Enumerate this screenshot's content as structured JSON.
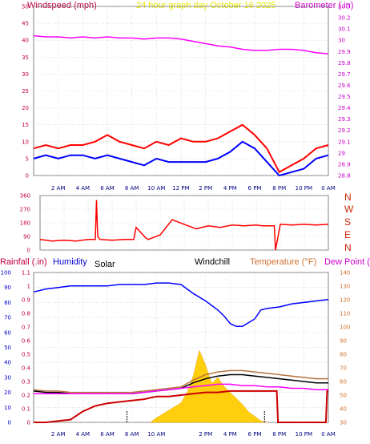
{
  "chart_data": [
    {
      "type": "line",
      "title": "24 hour graph day  October 16 2025",
      "left_axis": {
        "label": "Windspeed (mph)",
        "range": [
          0,
          50
        ],
        "ticks": [
          0,
          5,
          10,
          15,
          20,
          25,
          30,
          35,
          40,
          45,
          50
        ]
      },
      "right_axis": {
        "label": "Barometer (.in)",
        "range": [
          28.8,
          30.3
        ],
        "ticks": [
          "28.8",
          "28.9",
          "29",
          "29.1",
          "29.2",
          "29.3",
          "29.4",
          "29.5",
          "29.6",
          "29.7",
          "29.8",
          "29.9",
          "30",
          "30.1",
          "30.2",
          "30.3"
        ]
      },
      "x_ticks": [
        "2 AM",
        "4 AM",
        "6 AM",
        "8 AM",
        "10 AM",
        "12 PM",
        "2 PM",
        "4 PM",
        "6 PM",
        "8 PM",
        "10 PM",
        "0 AM"
      ],
      "grid": true,
      "series": [
        {
          "name": "Barometer (.in)",
          "color": "#ff00ff",
          "axis": "right",
          "x": [
            0,
            1,
            2,
            3,
            4,
            5,
            6,
            7,
            8,
            9,
            10,
            11,
            12,
            13,
            14,
            15,
            16,
            17,
            18,
            19,
            20,
            21,
            22,
            23,
            24
          ],
          "values": [
            30.04,
            30.03,
            30.03,
            30.02,
            30.03,
            30.02,
            30.03,
            30.02,
            30.02,
            30.01,
            30.02,
            30.02,
            30.01,
            29.99,
            29.97,
            29.95,
            29.94,
            29.92,
            29.91,
            29.91,
            29.92,
            29.92,
            29.91,
            29.89,
            29.88
          ]
        },
        {
          "name": "Wind gust",
          "color": "#ff0000",
          "axis": "left",
          "x": [
            0,
            1,
            2,
            3,
            4,
            5,
            6,
            7,
            8,
            9,
            10,
            11,
            12,
            13,
            14,
            15,
            16,
            17,
            18,
            19,
            20,
            21,
            22,
            23,
            24
          ],
          "values": [
            8,
            9,
            8,
            9,
            9,
            10,
            12,
            10,
            9,
            8,
            10,
            9,
            11,
            10,
            10,
            11,
            13,
            15,
            12,
            8,
            1,
            3,
            5,
            8,
            9
          ]
        },
        {
          "name": "Wind average",
          "color": "#0000ff",
          "axis": "left",
          "x": [
            0,
            1,
            2,
            3,
            4,
            5,
            6,
            7,
            8,
            9,
            10,
            11,
            12,
            13,
            14,
            15,
            16,
            17,
            18,
            19,
            20,
            21,
            22,
            23,
            24
          ],
          "values": [
            5,
            6,
            5,
            6,
            6,
            5,
            6,
            5,
            4,
            3,
            5,
            4,
            4,
            4,
            4,
            5,
            7,
            10,
            8,
            4,
            0,
            1,
            2,
            5,
            6
          ]
        }
      ]
    },
    {
      "type": "line",
      "title": "",
      "left_axis": {
        "range": [
          0,
          360
        ],
        "ticks": [
          0,
          90,
          180,
          270,
          360
        ]
      },
      "right_axis": {
        "ticks": [
          "N",
          "E",
          "S",
          "W",
          "N"
        ]
      },
      "x_ticks": [],
      "grid": true,
      "series": [
        {
          "name": "Wind direction",
          "color": "#ff0000",
          "x": [
            0,
            1,
            2,
            3,
            4,
            4.6,
            4.7,
            4.8,
            5,
            6,
            7,
            7.8,
            8,
            8.8,
            9,
            10,
            11,
            12,
            13,
            14,
            15,
            16,
            17,
            18,
            18.5,
            19.5,
            19.6,
            20,
            21,
            22,
            23,
            24
          ],
          "values": [
            70,
            60,
            65,
            60,
            70,
            70,
            330,
            90,
            70,
            65,
            70,
            70,
            150,
            80,
            70,
            100,
            200,
            170,
            140,
            160,
            150,
            165,
            160,
            165,
            160,
            160,
            0,
            170,
            165,
            170,
            165,
            170
          ]
        }
      ]
    },
    {
      "type": "line",
      "title": "",
      "left_axis": {
        "range": [
          0,
          100
        ],
        "ticks": [
          0,
          10,
          20,
          30,
          40,
          50,
          60,
          70,
          80,
          90,
          100
        ]
      },
      "left_axis_2": {
        "range": [
          0,
          1.1
        ],
        "ticks": [
          "0",
          "0.1",
          "0.2",
          "0.3",
          "0.4",
          "0.5",
          "0.6",
          "0.7",
          "0.8",
          "0.9",
          "1",
          "1.1"
        ]
      },
      "right_axis": {
        "range": [
          30,
          140
        ],
        "ticks": [
          30,
          40,
          50,
          60,
          70,
          80,
          90,
          100,
          110,
          120,
          130,
          140
        ]
      },
      "legend": [
        "Rainfall (.in)",
        "Humidity",
        "Solar",
        "Windchill",
        "Temperature (°F)",
        "Dew Point (°F)"
      ],
      "x_ticks": [
        "2 AM",
        "4 AM",
        "6 AM",
        "8 AM",
        "10 AM",
        "2 PM",
        "4 PM",
        "6 PM",
        "8 PM",
        "10 PM",
        "0 AM"
      ],
      "grid": true,
      "series": [
        {
          "name": "Humidity",
          "color": "#0000ff",
          "x": [
            0,
            1,
            2,
            3,
            4,
            5,
            6,
            7,
            8,
            9,
            10,
            11,
            12,
            13,
            14,
            15,
            15.5,
            16,
            16.5,
            17,
            18,
            18.5,
            19,
            20,
            21,
            22,
            23,
            24
          ],
          "values": [
            87,
            89,
            90,
            91,
            91,
            91,
            91,
            92,
            92,
            92,
            93,
            93,
            92,
            86,
            81,
            75,
            71,
            66,
            64,
            64,
            69,
            75,
            76,
            77,
            79,
            80,
            81,
            82
          ]
        },
        {
          "name": "Temperature (°F)",
          "color": "#b8733d",
          "x": [
            0,
            1,
            2,
            3,
            4,
            5,
            6,
            7,
            8,
            9,
            10,
            11,
            12,
            13,
            14,
            15,
            16,
            17,
            18,
            19,
            20,
            21,
            22,
            23,
            24
          ],
          "values": [
            54,
            53,
            53,
            52,
            52,
            52,
            52,
            52,
            52,
            53,
            54,
            55,
            56,
            61,
            65,
            67,
            68,
            68,
            67,
            66,
            65,
            64,
            63,
            62,
            62
          ]
        },
        {
          "name": "Windchill",
          "color": "#000000",
          "x": [
            0,
            1,
            2,
            3,
            4,
            5,
            6,
            7,
            8,
            9,
            10,
            11,
            12,
            13,
            14,
            15,
            16,
            17,
            18,
            19,
            20,
            21,
            22,
            23,
            24
          ],
          "values": [
            53,
            52,
            52,
            51,
            51,
            51,
            51,
            51,
            51,
            52,
            53,
            54,
            55,
            59,
            62,
            64,
            65,
            65,
            64,
            63,
            62,
            61,
            60,
            59,
            59
          ]
        },
        {
          "name": "Dew Point (°F)",
          "color": "#ff00ff",
          "x": [
            0,
            1,
            2,
            3,
            4,
            5,
            6,
            7,
            8,
            9,
            10,
            11,
            12,
            13,
            14,
            15,
            16,
            17,
            18,
            19,
            20,
            21,
            22,
            23,
            24
          ],
          "values": [
            51,
            51,
            51,
            51,
            51,
            51,
            51,
            51,
            51,
            52,
            53,
            54,
            55,
            56,
            57,
            58,
            58,
            57,
            57,
            56,
            56,
            55,
            55,
            54,
            54
          ]
        },
        {
          "name": "Rainfall (.in)",
          "color": "#cc0000",
          "x": [
            0,
            1,
            2,
            3,
            3.5,
            4,
            4.5,
            5,
            6,
            7,
            8,
            9,
            9.5,
            10,
            11,
            12,
            13,
            14,
            15,
            16,
            17,
            18,
            19,
            19.8,
            19.9,
            20,
            21,
            22,
            23,
            23.8,
            23.9,
            24
          ],
          "values": [
            0,
            0,
            0.01,
            0.02,
            0.05,
            0.08,
            0.1,
            0.12,
            0.14,
            0.15,
            0.16,
            0.17,
            0.18,
            0.19,
            0.19,
            0.2,
            0.21,
            0.22,
            0.22,
            0.23,
            0.23,
            0.23,
            0.23,
            0.23,
            0,
            0,
            0,
            0,
            0,
            0,
            0.23,
            0.23
          ]
        },
        {
          "name": "Solar",
          "color": "#ffcc00",
          "x": [
            9.5,
            10,
            11,
            12,
            12.5,
            13,
            13.5,
            14,
            14.5,
            15,
            15.5,
            16,
            16.5,
            17,
            17.5,
            18,
            18.5,
            19
          ],
          "values": [
            0,
            3,
            8,
            13,
            20,
            31,
            48,
            38,
            26,
            30,
            24,
            20,
            16,
            12,
            7,
            4,
            1,
            0
          ]
        }
      ]
    }
  ],
  "headers": {
    "top_left": "Windspeed (mph)",
    "top_center": "24 hour graph day  October 16 2025",
    "top_right": "Barometer (.in)",
    "compass": [
      "N",
      "W",
      "S",
      "E",
      "N"
    ],
    "bottom_rainfall": "Rainfall (.in)",
    "bottom_humidity": "Humidity",
    "bottom_solar": "Solar",
    "bottom_windchill": "Windchill",
    "bottom_temperature": "Temperature (°F)",
    "bottom_dewpoint": "Dew Point (°F)"
  },
  "colors": {
    "frame": "#808080",
    "grid": "#c8c8c8",
    "barometer": "#ff00ff",
    "wind_gust": "#ff0000",
    "wind_avg": "#0000ff",
    "direction": "#ff0000",
    "rain": "#cc0000",
    "humidity": "#0000ff",
    "temperature": "#b8733d",
    "dewpoint": "#ff00ff",
    "solar": "#ffcc00",
    "left_axis_text": "#c00040",
    "right_axis_text": "#cc00cc",
    "temp_axis_text": "#d07030",
    "header_yellow": "#e6e600"
  }
}
